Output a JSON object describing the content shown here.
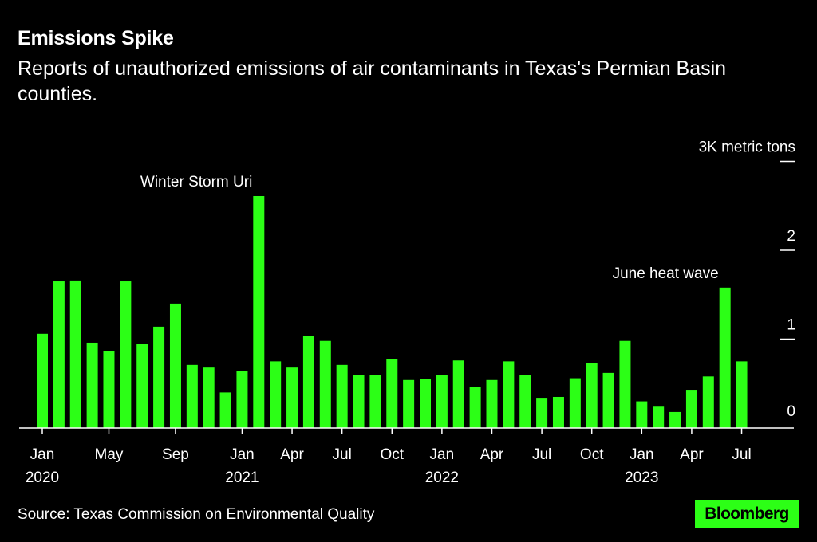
{
  "header": {
    "title": "Emissions Spike",
    "subtitle": "Reports of unauthorized emissions of air contaminants in Texas's Permian Basin counties."
  },
  "footer": {
    "source": "Source: Texas Commission on Environmental Quality",
    "brand": "Bloomberg"
  },
  "colors": {
    "bar": "#2cff16",
    "background": "#000000",
    "text": "#ffffff"
  },
  "chart_data": {
    "type": "bar",
    "title": "Emissions Spike",
    "subtitle": "Reports of unauthorized emissions of air contaminants in Texas's Permian Basin counties.",
    "ylabel": "3K metric tons",
    "ylim": [
      0,
      3
    ],
    "yticks": [
      {
        "value": 0,
        "label": "0"
      },
      {
        "value": 1,
        "label": "1"
      },
      {
        "value": 2,
        "label": "2"
      },
      {
        "value": 3,
        "label": "3K metric tons"
      }
    ],
    "months": [
      "Jan 2020",
      "Feb 2020",
      "Mar 2020",
      "Apr 2020",
      "May 2020",
      "Jun 2020",
      "Jul 2020",
      "Aug 2020",
      "Sep 2020",
      "Oct 2020",
      "Nov 2020",
      "Dec 2020",
      "Jan 2021",
      "Feb 2021",
      "Mar 2021",
      "Apr 2021",
      "May 2021",
      "Jun 2021",
      "Jul 2021",
      "Aug 2021",
      "Sep 2021",
      "Oct 2021",
      "Nov 2021",
      "Dec 2021",
      "Jan 2022",
      "Feb 2022",
      "Mar 2022",
      "Apr 2022",
      "May 2022",
      "Jun 2022",
      "Jul 2022",
      "Aug 2022",
      "Sep 2022",
      "Oct 2022",
      "Nov 2022",
      "Dec 2022",
      "Jan 2023",
      "Feb 2023",
      "Mar 2023",
      "Apr 2023",
      "May 2023",
      "Jun 2023",
      "Jul 2023"
    ],
    "values": [
      1.06,
      1.65,
      1.66,
      0.96,
      0.87,
      1.65,
      0.95,
      1.14,
      1.4,
      0.71,
      0.68,
      0.4,
      0.64,
      2.61,
      0.75,
      0.68,
      1.04,
      0.98,
      0.71,
      0.6,
      0.6,
      0.78,
      0.54,
      0.55,
      0.6,
      0.76,
      0.46,
      0.54,
      0.75,
      0.6,
      0.34,
      0.35,
      0.56,
      0.73,
      0.62,
      0.98,
      0.3,
      0.24,
      0.18,
      0.43,
      0.58,
      1.58,
      0.75
    ],
    "xticks": [
      {
        "index": 0,
        "label": "Jan",
        "year": "2020"
      },
      {
        "index": 4,
        "label": "May",
        "year": ""
      },
      {
        "index": 8,
        "label": "Sep",
        "year": ""
      },
      {
        "index": 12,
        "label": "Jan",
        "year": "2021"
      },
      {
        "index": 15,
        "label": "Apr",
        "year": ""
      },
      {
        "index": 18,
        "label": "Jul",
        "year": ""
      },
      {
        "index": 21,
        "label": "Oct",
        "year": ""
      },
      {
        "index": 24,
        "label": "Jan",
        "year": "2022"
      },
      {
        "index": 27,
        "label": "Apr",
        "year": ""
      },
      {
        "index": 30,
        "label": "Jul",
        "year": ""
      },
      {
        "index": 33,
        "label": "Oct",
        "year": ""
      },
      {
        "index": 36,
        "label": "Jan",
        "year": "2023"
      },
      {
        "index": 39,
        "label": "Apr",
        "year": ""
      },
      {
        "index": 42,
        "label": "Jul",
        "year": ""
      }
    ],
    "annotations": [
      {
        "index": 13,
        "text": "Winter Storm Uri",
        "anchor": "end"
      },
      {
        "index": 41,
        "text": "June heat wave",
        "anchor": "end"
      }
    ],
    "grid": false
  }
}
